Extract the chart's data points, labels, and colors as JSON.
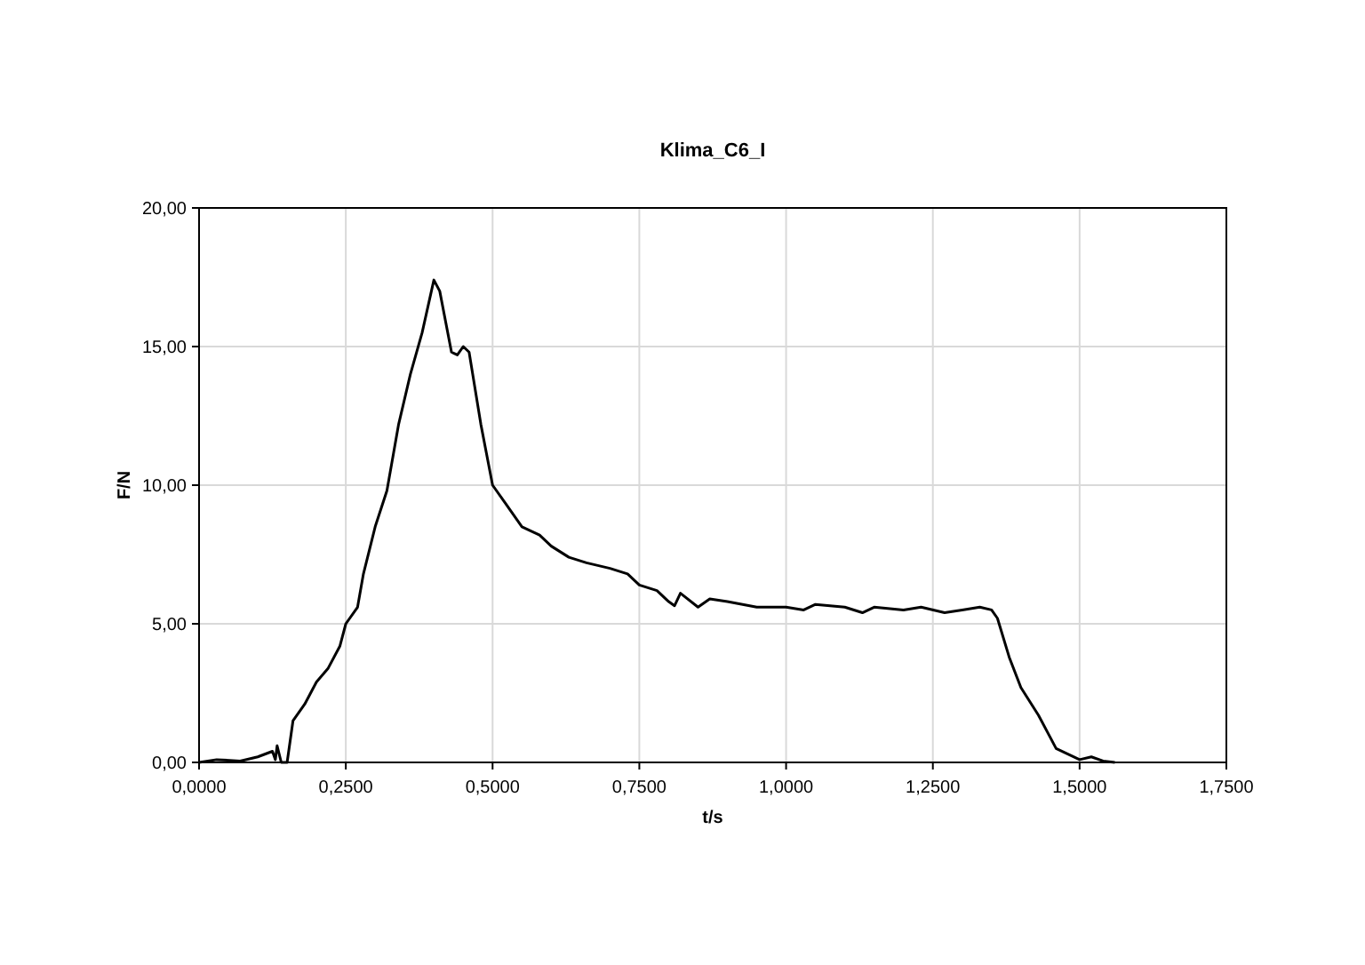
{
  "chart_data": {
    "type": "line",
    "title": "Klima_C6_I",
    "xlabel": "t/s",
    "ylabel": "F/N",
    "x": [
      0,
      0.03,
      0.07,
      0.1,
      0.125,
      0.13,
      0.133,
      0.14,
      0.15,
      0.16,
      0.18,
      0.2,
      0.22,
      0.24,
      0.25,
      0.27,
      0.28,
      0.3,
      0.32,
      0.34,
      0.36,
      0.38,
      0.4,
      0.41,
      0.43,
      0.44,
      0.45,
      0.46,
      0.48,
      0.5,
      0.52,
      0.55,
      0.58,
      0.6,
      0.63,
      0.66,
      0.7,
      0.73,
      0.75,
      0.78,
      0.8,
      0.81,
      0.82,
      0.85,
      0.87,
      0.9,
      0.95,
      1.0,
      1.03,
      1.05,
      1.1,
      1.13,
      1.15,
      1.2,
      1.23,
      1.27,
      1.3,
      1.33,
      1.35,
      1.36,
      1.38,
      1.4,
      1.43,
      1.45,
      1.46,
      1.48,
      1.5,
      1.52,
      1.54,
      1.56
    ],
    "series": [
      {
        "color": "#000000",
        "values": [
          0,
          0.1,
          0.05,
          0.2,
          0.4,
          0.1,
          0.6,
          0,
          0,
          1.5,
          2.1,
          2.9,
          3.4,
          4.2,
          5.0,
          5.6,
          6.8,
          8.5,
          9.8,
          12.2,
          14.0,
          15.5,
          17.4,
          17.0,
          14.8,
          14.7,
          15.0,
          14.8,
          12.2,
          10.0,
          9.4,
          8.5,
          8.2,
          7.8,
          7.4,
          7.2,
          7.0,
          6.8,
          6.4,
          6.2,
          5.8,
          5.65,
          6.1,
          5.6,
          5.9,
          5.8,
          5.6,
          5.6,
          5.5,
          5.7,
          5.6,
          5.4,
          5.6,
          5.5,
          5.6,
          5.4,
          5.5,
          5.6,
          5.5,
          5.2,
          3.8,
          2.7,
          1.7,
          0.9,
          0.5,
          0.3,
          0.1,
          0.2,
          0.05,
          0
        ]
      }
    ],
    "xlim": [
      0,
      1.75
    ],
    "xticks": [
      {
        "value": 0,
        "label": "0,0000"
      },
      {
        "value": 0.25,
        "label": "0,2500"
      },
      {
        "value": 0.5,
        "label": "0,5000"
      },
      {
        "value": 0.75,
        "label": "0,7500"
      },
      {
        "value": 1,
        "label": "1,0000"
      },
      {
        "value": 1.25,
        "label": "1,2500"
      },
      {
        "value": 1.5,
        "label": "1,5000"
      },
      {
        "value": 1.75,
        "label": "1,7500"
      }
    ],
    "ylim": [
      0,
      20
    ],
    "yticks": [
      {
        "value": 0,
        "label": "0,00"
      },
      {
        "value": 5,
        "label": "5,00"
      },
      {
        "value": 10,
        "label": "10,00"
      },
      {
        "value": 15,
        "label": "15,00"
      },
      {
        "value": 20,
        "label": "20,00"
      }
    ],
    "grid": true,
    "marker": "none",
    "line_style": "solid"
  }
}
